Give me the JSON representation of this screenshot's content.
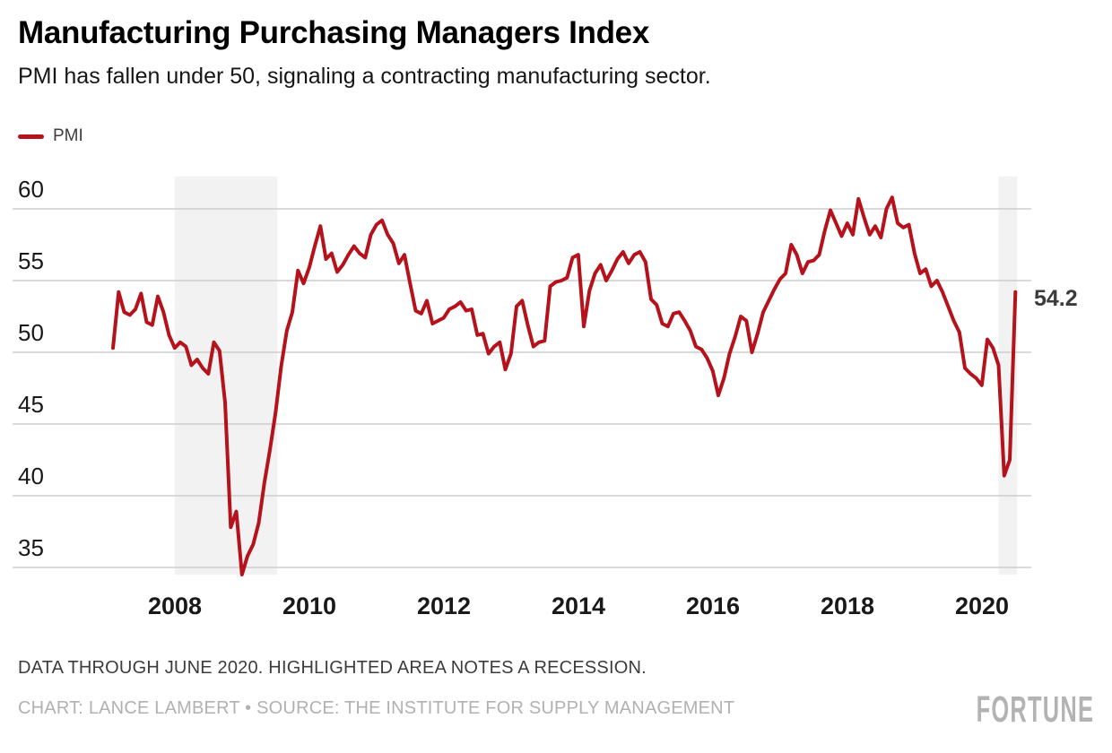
{
  "header": {
    "title": "Manufacturing Purchasing Managers Index",
    "subtitle": "PMI has fallen under 50, signaling a contracting manufacturing sector."
  },
  "legend": {
    "label": "PMI"
  },
  "footer": {
    "note": "DATA THROUGH JUNE 2020. HIGHLIGHTED AREA NOTES A RECESSION.",
    "credit": "CHART: LANCE LAMBERT • SOURCE: THE INSTITUTE FOR SUPPLY MANAGEMENT",
    "brand": "FORTUNE"
  },
  "chart_data": {
    "type": "line",
    "frequency": "monthly",
    "x_start": "2007-01",
    "x_end": "2020-06",
    "y_ticks": [
      35,
      40,
      45,
      50,
      55,
      60
    ],
    "x_ticks": [
      2008,
      2010,
      2012,
      2014,
      2016,
      2018,
      2020
    ],
    "ylim": [
      33.5,
      61.5
    ],
    "grid": "horizontal-only",
    "legend_position": "top-left",
    "band_color": "#f2f2f2",
    "grid_color": "#cdcdcd",
    "recession_bands": [
      {
        "start": "2007-12",
        "end": "2009-06"
      },
      {
        "start": "2020-03",
        "end": "2020-06"
      }
    ],
    "end_label": {
      "text": "54.2",
      "value": 54.2
    },
    "series": [
      {
        "name": "PMI",
        "color": "#b5121b",
        "values": [
          50.3,
          54.2,
          52.8,
          52.6,
          53.0,
          54.1,
          52.1,
          51.9,
          53.9,
          52.8,
          51.2,
          50.3,
          50.7,
          50.4,
          49.1,
          49.5,
          48.9,
          48.5,
          50.7,
          50.1,
          46.5,
          37.8,
          38.9,
          34.5,
          35.8,
          36.6,
          38.1,
          40.9,
          43.2,
          45.8,
          49.0,
          51.5,
          52.8,
          55.7,
          54.8,
          55.9,
          57.4,
          58.8,
          56.5,
          56.9,
          55.6,
          56.1,
          56.8,
          57.4,
          56.9,
          56.6,
          58.2,
          58.9,
          59.2,
          58.2,
          57.6,
          56.2,
          56.8,
          54.8,
          52.9,
          52.7,
          53.6,
          52.0,
          52.2,
          52.4,
          53.0,
          53.2,
          53.5,
          52.9,
          53.0,
          51.2,
          51.3,
          49.9,
          50.4,
          50.7,
          48.8,
          49.9,
          53.2,
          53.6,
          51.9,
          50.4,
          50.7,
          50.8,
          54.6,
          54.9,
          55.0,
          55.2,
          56.6,
          56.8,
          51.8,
          54.3,
          55.5,
          56.1,
          55.0,
          55.7,
          56.5,
          57.0,
          56.2,
          56.8,
          57.0,
          56.3,
          53.7,
          53.3,
          52.0,
          51.8,
          52.7,
          52.8,
          52.2,
          51.5,
          50.4,
          50.2,
          49.6,
          48.7,
          47.0,
          48.2,
          49.9,
          51.1,
          52.5,
          52.2,
          50.0,
          51.3,
          52.8,
          53.6,
          54.4,
          55.1,
          55.5,
          57.5,
          56.8,
          55.5,
          56.3,
          56.4,
          56.8,
          58.5,
          59.9,
          59.0,
          58.1,
          59.0,
          58.2,
          60.7,
          59.4,
          58.2,
          58.8,
          58.0,
          60.0,
          60.8,
          59.0,
          58.7,
          58.9,
          56.9,
          55.5,
          55.8,
          54.6,
          55.0,
          54.2,
          53.2,
          52.2,
          51.4,
          48.9,
          48.5,
          48.2,
          47.7,
          50.9,
          50.3,
          49.1,
          41.4,
          42.5,
          54.2
        ]
      }
    ]
  }
}
